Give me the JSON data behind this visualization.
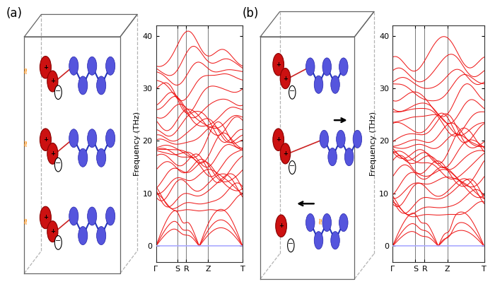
{
  "fig_width": 7.0,
  "fig_height": 4.19,
  "dpi": 100,
  "background_color": "#ffffff",
  "panel_a_label": "(a)",
  "panel_b_label": "(b)",
  "ylabel": "Frequency (THz)",
  "ylim": [
    -3,
    42
  ],
  "yticks": [
    0,
    10,
    20,
    30,
    40
  ],
  "xtick_labels": [
    "Γ",
    "S",
    "R",
    "Z",
    "T"
  ],
  "line_color": "#ee1111",
  "hline_color": "#aaaaff",
  "hline_y": 0,
  "box_color": "#888888",
  "N_color": "#5555dd",
  "P_color": "#cc1111",
  "orange_color": "#ff8800"
}
